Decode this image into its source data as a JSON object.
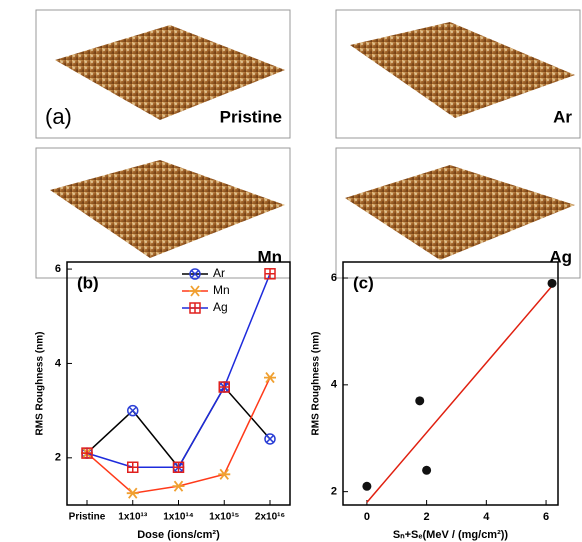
{
  "images": {
    "label": "(a)",
    "panels": [
      {
        "label": "Pristine"
      },
      {
        "label": "Ar"
      },
      {
        "label": "Mn"
      },
      {
        "label": "Ag"
      }
    ]
  },
  "chart_data": [
    {
      "type": "line",
      "label": "(b)",
      "ylabel": "RMS Roughness (nm)",
      "xlabel": "Dose (ions/cm²)",
      "categories": [
        "Pristine",
        "1x10¹³",
        "1x10¹⁴",
        "1x10¹⁵",
        "2x10¹⁶"
      ],
      "ylim": [
        1,
        6.15
      ],
      "yticks": [
        2,
        4,
        6
      ],
      "series": [
        {
          "name": "Ar",
          "color": "#000000",
          "marker_color": "#2b3fd6",
          "marker": "circle-x",
          "values": [
            2.1,
            3.0,
            1.8,
            3.5,
            2.4
          ]
        },
        {
          "name": "Mn",
          "color": "#ff3a1a",
          "marker_color": "#f0a030",
          "marker": "star",
          "values": [
            2.1,
            1.25,
            1.4,
            1.65,
            3.7
          ]
        },
        {
          "name": "Ag",
          "color": "#1e2bdc",
          "marker_color": "#e0201e",
          "marker": "square-plus",
          "values": [
            2.1,
            1.8,
            1.8,
            3.5,
            5.9
          ]
        }
      ]
    },
    {
      "type": "scatter",
      "label": "(c)",
      "ylabel": "RMS Roughness (nm)",
      "xlabel": "Sₙ+Sₑ(MeV / (mg/cm²))",
      "x": [
        0,
        2.0,
        1.77,
        6.2
      ],
      "values": [
        2.1,
        2.4,
        3.7,
        5.9
      ],
      "color": "#111111",
      "fit": {
        "x": [
          0,
          6.2
        ],
        "y": [
          1.8,
          5.85
        ],
        "color": "#e02010"
      },
      "xlim": [
        -0.8,
        6.4
      ],
      "xticks": [
        0,
        2,
        4,
        6
      ],
      "ylim": [
        1.75,
        6.3
      ],
      "yticks": [
        2,
        4,
        6
      ]
    }
  ]
}
